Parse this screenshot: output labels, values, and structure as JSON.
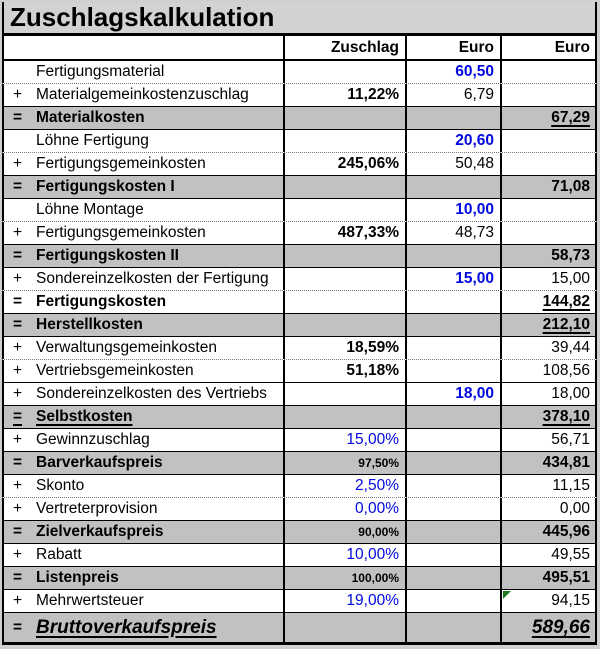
{
  "title": "Zuschlagskalkulation",
  "header": {
    "zuschlag": "Zuschlag",
    "euro1": "Euro",
    "euro2": "Euro"
  },
  "colors": {
    "page_background": "#cfcfcf",
    "section_row_gray": "#c1c1c1",
    "input_value_blue": "#0008e0",
    "marker_green": "#1c7a1c",
    "border_black": "#000000"
  },
  "rows": [
    {
      "sign": "",
      "label": "Fertigungsmaterial",
      "z": "",
      "e1": "60,50",
      "e2": "",
      "row": "dotted",
      "e1c": "blue-bold"
    },
    {
      "sign": "+",
      "label": "Materialgemeinkostenzuschlag",
      "z": "11,22%",
      "e1": "6,79",
      "e2": "",
      "row": "",
      "zc": "bold"
    },
    {
      "sign": "=",
      "label": "Materialkosten",
      "z": "",
      "e1": "",
      "e2": "67,29",
      "row": "gray",
      "sc": "bold",
      "lc": "bold",
      "e2c": "bold u"
    },
    {
      "sign": "",
      "label": "Löhne Fertigung",
      "z": "",
      "e1": "20,60",
      "e2": "",
      "row": "dotted",
      "e1c": "blue-bold"
    },
    {
      "sign": "+",
      "label": "Fertigungsgemeinkosten",
      "z": "245,06%",
      "e1": "50,48",
      "e2": "",
      "row": "",
      "zc": "bold"
    },
    {
      "sign": "=",
      "label": "Fertigungskosten I",
      "z": "",
      "e1": "",
      "e2": "71,08",
      "row": "gray",
      "sc": "bold",
      "lc": "bold",
      "e2c": "bold"
    },
    {
      "sign": "",
      "label": "Löhne Montage",
      "z": "",
      "e1": "10,00",
      "e2": "",
      "row": "dotted",
      "e1c": "blue-bold"
    },
    {
      "sign": "+",
      "label": "Fertigungsgemeinkosten",
      "z": "487,33%",
      "e1": "48,73",
      "e2": "",
      "row": "",
      "zc": "bold"
    },
    {
      "sign": "=",
      "label": "Fertigungskosten II",
      "z": "",
      "e1": "",
      "e2": "58,73",
      "row": "gray",
      "sc": "bold",
      "lc": "bold",
      "e2c": "bold"
    },
    {
      "sign": "+",
      "label": "Sondereinzelkosten der Fertigung",
      "z": "",
      "e1": "15,00",
      "e2": "15,00",
      "row": "dotted",
      "e1c": "blue-bold"
    },
    {
      "sign": "=",
      "label": "Fertigungskosten",
      "z": "",
      "e1": "",
      "e2": "144,82",
      "row": "",
      "sc": "bold",
      "lc": "bold",
      "e2c": "bold u"
    },
    {
      "sign": "=",
      "label": "Herstellkosten",
      "z": "",
      "e1": "",
      "e2": "212,10",
      "row": "gray",
      "sc": "bold",
      "lc": "bold",
      "e2c": "bold u"
    },
    {
      "sign": "+",
      "label": "Verwaltungsgemeinkosten",
      "z": "18,59%",
      "e1": "",
      "e2": "39,44",
      "row": "dotted",
      "zc": "bold"
    },
    {
      "sign": "+",
      "label": "Vertriebsgemeinkosten",
      "z": "51,18%",
      "e1": "",
      "e2": "108,56",
      "row": "",
      "zc": "bold"
    },
    {
      "sign": "+",
      "label": "Sondereinzelkosten des Vertriebs",
      "z": "",
      "e1": "18,00",
      "e2": "18,00",
      "row": "",
      "e1c": "blue-bold"
    },
    {
      "sign": "=",
      "label": "Selbstkosten",
      "z": "",
      "e1": "",
      "e2": "378,10",
      "row": "gray",
      "sc": "bold u",
      "lc": "bold u",
      "e2c": "bold u"
    },
    {
      "sign": "+",
      "label": "Gewinnzuschlag",
      "z": "15,00%",
      "e1": "",
      "e2": "56,71",
      "row": "",
      "zc": "blue"
    },
    {
      "sign": "=",
      "label": "Barverkaufspreis",
      "z": "97,50%",
      "e1": "",
      "e2": "434,81",
      "row": "gray",
      "sc": "bold",
      "lc": "bold",
      "zc": "small-bold",
      "e2c": "bold"
    },
    {
      "sign": "+",
      "label": "Skonto",
      "z": "2,50%",
      "e1": "",
      "e2": "11,15",
      "row": "dotted",
      "zc": "blue"
    },
    {
      "sign": "+",
      "label": "Vertreterprovision",
      "z": "0,00%",
      "e1": "",
      "e2": "0,00",
      "row": "",
      "zc": "blue"
    },
    {
      "sign": "=",
      "label": "Zielverkaufspreis",
      "z": "90,00%",
      "e1": "",
      "e2": "445,96",
      "row": "gray",
      "sc": "bold",
      "lc": "bold",
      "zc": "small-bold",
      "e2c": "bold"
    },
    {
      "sign": "+",
      "label": "Rabatt",
      "z": "10,00%",
      "e1": "",
      "e2": "49,55",
      "row": "",
      "zc": "blue"
    },
    {
      "sign": "=",
      "label": "Listenpreis",
      "z": "100,00%",
      "e1": "",
      "e2": "495,51",
      "row": "gray",
      "sc": "bold",
      "lc": "bold",
      "zc": "small-bold",
      "e2c": "bold"
    },
    {
      "sign": "+",
      "label": "Mehrwertsteuer",
      "z": "19,00%",
      "e1": "",
      "e2": "94,15",
      "row": "",
      "zc": "blue",
      "marker": true
    },
    {
      "sign": "=",
      "label": "Bruttoverkaufspreis",
      "z": "",
      "e1": "",
      "e2": "589,66",
      "row": "gray last",
      "sc": "bold",
      "lc": "big u",
      "e2c": "big u"
    }
  ]
}
